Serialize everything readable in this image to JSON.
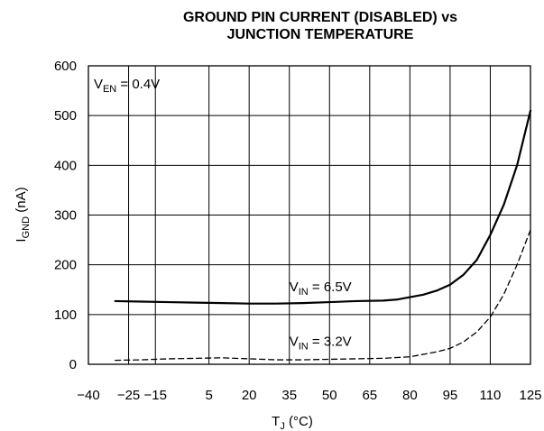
{
  "chart_data": {
    "type": "line",
    "title_line1": "GROUND PIN CURRENT (DISABLED) vs",
    "title_line2": "JUNCTION TEMPERATURE",
    "xlabel": {
      "main": "T",
      "sub": "J",
      "unit": " (°C)"
    },
    "ylabel": {
      "main": "I",
      "sub": "GND",
      "unit": " (nA)"
    },
    "xlim": [
      -40,
      125
    ],
    "ylim": [
      0,
      600
    ],
    "x_ticks": [
      -40,
      -25,
      -15,
      5,
      20,
      35,
      50,
      65,
      80,
      95,
      110,
      125
    ],
    "x_tick_labels": [
      "−40",
      "−25",
      "−15",
      "5",
      "20",
      "35",
      "50",
      "65",
      "80",
      "95",
      "110",
      "125"
    ],
    "x_gridlines": [
      -40,
      -25,
      -15,
      5,
      20,
      35,
      50,
      65,
      80,
      95,
      110,
      125
    ],
    "y_ticks": [
      0,
      100,
      200,
      300,
      400,
      500,
      600
    ],
    "y_tick_labels": [
      "0",
      "100",
      "200",
      "300",
      "400",
      "500",
      "600"
    ],
    "grid": true,
    "series": [
      {
        "name": "VIN = 6.5V",
        "style": "solid",
        "color": "#000000",
        "x": [
          -30,
          -20,
          -10,
          0,
          10,
          20,
          30,
          40,
          50,
          60,
          70,
          75,
          80,
          85,
          90,
          95,
          100,
          105,
          110,
          115,
          120,
          125
        ],
        "y": [
          127,
          126,
          125,
          124,
          123,
          122,
          122,
          123,
          125,
          127,
          128,
          130,
          135,
          140,
          148,
          160,
          180,
          210,
          260,
          320,
          400,
          510
        ]
      },
      {
        "name": "VIN = 3.2V",
        "style": "dashed",
        "color": "#000000",
        "x": [
          -30,
          -20,
          -10,
          0,
          10,
          20,
          30,
          40,
          50,
          60,
          70,
          80,
          85,
          90,
          95,
          100,
          105,
          110,
          115,
          120,
          125
        ],
        "y": [
          8,
          9,
          11,
          12,
          13,
          11,
          9,
          9,
          10,
          11,
          12,
          15,
          20,
          25,
          32,
          45,
          65,
          95,
          140,
          200,
          270
        ]
      }
    ],
    "annotations": [
      {
        "id": "ven",
        "main": "V",
        "sub": "EN",
        "rest": " = 0.4V",
        "at_x": -38,
        "at_y": 555
      },
      {
        "id": "vin-high",
        "main": "V",
        "sub": "IN",
        "rest": " = 6.5V",
        "at_x": 35,
        "at_y": 147
      },
      {
        "id": "vin-low",
        "main": "V",
        "sub": "IN",
        "rest": " = 3.2V",
        "at_x": 35,
        "at_y": 37
      }
    ]
  }
}
